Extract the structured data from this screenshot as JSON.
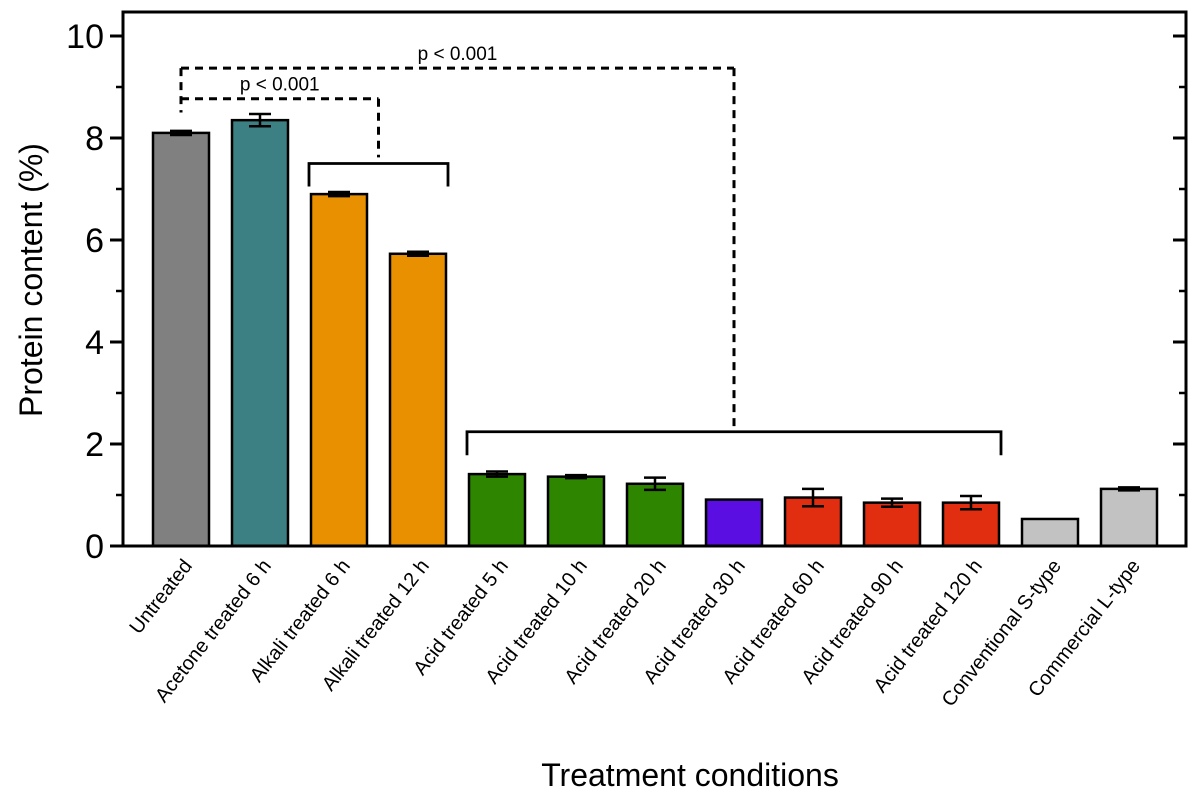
{
  "chart_data": {
    "type": "bar",
    "title": "",
    "xlabel": "Treatment conditions",
    "ylabel": "Protein content (%)",
    "ylim": [
      0,
      10.5
    ],
    "yticks_major": [
      0,
      2,
      4,
      6,
      8,
      10
    ],
    "yticks_minor": [
      1,
      3,
      5,
      7,
      9
    ],
    "grid": false,
    "legend": "none",
    "categories": [
      "Untreated",
      "Acetone treated 6 h",
      "Alkali treated 6 h",
      "Alkali treated 12 h",
      "Acid treated 5 h",
      "Acid treated 10 h",
      "Acid treated 20 h",
      "Acid treated 30 h",
      "Acid treated 60 h",
      "Acid treated 90 h",
      "Acid treated 120 h",
      "Conventional S-type",
      "Commercial L-type"
    ],
    "values": [
      8.1,
      8.35,
      6.9,
      5.73,
      1.41,
      1.36,
      1.22,
      0.91,
      0.95,
      0.85,
      0.85,
      0.53,
      1.12
    ],
    "errors": [
      0.04,
      0.12,
      0.04,
      0.04,
      0.05,
      0.03,
      0.12,
      0,
      0.17,
      0.08,
      0.13,
      0,
      0.03
    ],
    "bar_colors": [
      "#808080",
      "#3d8083",
      "#e89000",
      "#e89000",
      "#2e8500",
      "#2e8500",
      "#2e8500",
      "#5b0ee1",
      "#e12d10",
      "#e12d10",
      "#e12d10",
      "#c2c2c2",
      "#c2c2c2"
    ],
    "bar_edge_color": "#000000",
    "significance": {
      "group_brackets": [
        {
          "name": "alkali-group-bracket",
          "from_category": 2,
          "to_category": 3,
          "y": 7.5,
          "drop_to": 7.05,
          "style": "solid"
        },
        {
          "name": "acid-group-bracket",
          "from_category": 4,
          "to_category": 10,
          "y": 2.24,
          "drop_to": 1.78,
          "style": "solid"
        }
      ],
      "comparisons": [
        {
          "label": "p < 0.001",
          "name": "untreated-vs-alkali",
          "from_category": 0,
          "to_between": [
            2,
            3
          ],
          "y": 8.77,
          "drop_to": 7.62,
          "style": "dashed"
        },
        {
          "label": "p < 0.001",
          "name": "untreated-vs-acid",
          "from_category": 0,
          "to_between": [
            7,
            7
          ],
          "y": 9.37,
          "drop_to": 2.3,
          "style": "dashed"
        }
      ],
      "left_stub": {
        "at_category": 0,
        "from_y": 9.37,
        "to_y": 8.5
      }
    }
  }
}
